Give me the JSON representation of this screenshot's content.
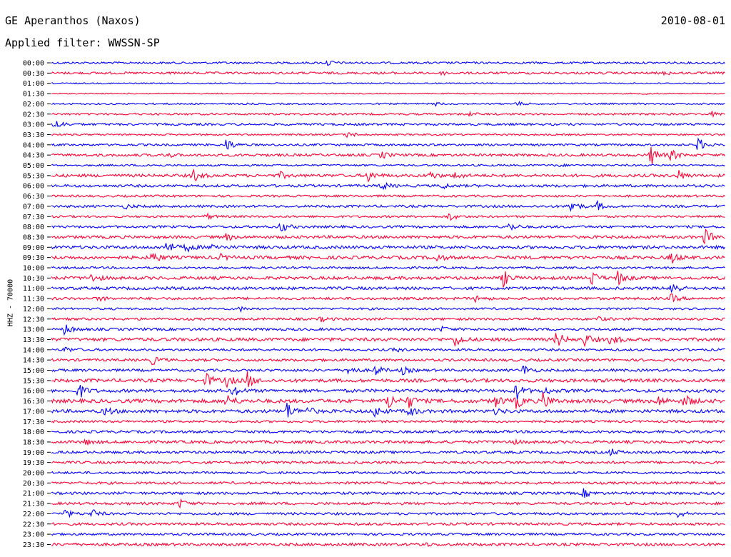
{
  "header": {
    "station": "GE Aperanthos (Naxos)",
    "date": "2010-08-01",
    "filter": "Applied filter: WWSSN-SP"
  },
  "chart_data": {
    "type": "line",
    "description": "24-hour helicorder, one trace per 30-minute row",
    "y_axis_label": "HHZ - 70000",
    "colors": [
      "#0000ff",
      "#ff0033"
    ],
    "rows": [
      {
        "label": "00:00",
        "amp": 1.4,
        "bursts": [
          [
            0.41,
            4
          ]
        ]
      },
      {
        "label": "00:30",
        "amp": 1.6,
        "bursts": [
          [
            0.58,
            2
          ],
          [
            0.91,
            2
          ]
        ]
      },
      {
        "label": "01:00",
        "amp": 0.9,
        "bursts": []
      },
      {
        "label": "01:30",
        "amp": 0.8,
        "bursts": [
          [
            0.88,
            1
          ]
        ]
      },
      {
        "label": "02:00",
        "amp": 1.2,
        "bursts": [
          [
            0.57,
            2
          ],
          [
            0.69,
            3
          ]
        ]
      },
      {
        "label": "02:30",
        "amp": 1.4,
        "bursts": [
          [
            0.62,
            2
          ],
          [
            0.98,
            3
          ]
        ]
      },
      {
        "label": "03:00",
        "amp": 1.6,
        "bursts": [
          [
            0.005,
            8
          ]
        ]
      },
      {
        "label": "03:30",
        "amp": 1.2,
        "bursts": [
          [
            0.44,
            5
          ]
        ]
      },
      {
        "label": "04:00",
        "amp": 1.5,
        "bursts": [
          [
            0.26,
            9
          ],
          [
            0.96,
            10
          ]
        ]
      },
      {
        "label": "04:30",
        "amp": 1.8,
        "bursts": [
          [
            0.17,
            4
          ],
          [
            0.49,
            5
          ],
          [
            0.89,
            14
          ],
          [
            0.92,
            8
          ]
        ]
      },
      {
        "label": "05:00",
        "amp": 1.3,
        "bursts": [
          [
            0.14,
            2
          ],
          [
            0.75,
            2
          ]
        ]
      },
      {
        "label": "05:30",
        "amp": 2.1,
        "bursts": [
          [
            0.21,
            9
          ],
          [
            0.34,
            4
          ],
          [
            0.47,
            8
          ],
          [
            0.56,
            6
          ],
          [
            0.6,
            5
          ],
          [
            0.93,
            7
          ]
        ]
      },
      {
        "label": "06:00",
        "amp": 1.8,
        "bursts": [
          [
            0.49,
            6
          ],
          [
            0.58,
            4
          ]
        ]
      },
      {
        "label": "06:30",
        "amp": 1.5,
        "bursts": []
      },
      {
        "label": "07:00",
        "amp": 1.7,
        "bursts": [
          [
            0.11,
            3
          ],
          [
            0.77,
            12
          ],
          [
            0.81,
            6
          ]
        ]
      },
      {
        "label": "07:30",
        "amp": 1.5,
        "bursts": [
          [
            0.23,
            4
          ],
          [
            0.59,
            6
          ]
        ]
      },
      {
        "label": "08:00",
        "amp": 1.7,
        "bursts": [
          [
            0.34,
            8
          ],
          [
            0.68,
            6
          ]
        ]
      },
      {
        "label": "08:30",
        "amp": 2.0,
        "bursts": [
          [
            0.26,
            5
          ],
          [
            0.97,
            12
          ]
        ]
      },
      {
        "label": "09:00",
        "amp": 2.2,
        "bursts": [
          [
            0.17,
            10
          ],
          [
            0.2,
            6
          ],
          [
            0.24,
            5
          ]
        ]
      },
      {
        "label": "09:30",
        "amp": 2.3,
        "bursts": [
          [
            0.15,
            8
          ],
          [
            0.25,
            4
          ],
          [
            0.57,
            6
          ],
          [
            0.92,
            8
          ]
        ]
      },
      {
        "label": "10:00",
        "amp": 1.5,
        "bursts": []
      },
      {
        "label": "10:30",
        "amp": 2.2,
        "bursts": [
          [
            0.06,
            6
          ],
          [
            0.67,
            12
          ],
          [
            0.8,
            12
          ],
          [
            0.84,
            10
          ]
        ]
      },
      {
        "label": "11:00",
        "amp": 2.0,
        "bursts": [
          [
            0.92,
            12
          ]
        ]
      },
      {
        "label": "11:30",
        "amp": 1.8,
        "bursts": [
          [
            0.07,
            3
          ],
          [
            0.63,
            4
          ],
          [
            0.92,
            6
          ]
        ]
      },
      {
        "label": "12:00",
        "amp": 1.5,
        "bursts": [
          [
            0.28,
            3
          ]
        ]
      },
      {
        "label": "12:30",
        "amp": 1.7,
        "bursts": [
          [
            0.4,
            3
          ],
          [
            0.81,
            3
          ]
        ]
      },
      {
        "label": "13:00",
        "amp": 1.8,
        "bursts": [
          [
            0.02,
            8
          ],
          [
            0.58,
            3
          ]
        ]
      },
      {
        "label": "13:30",
        "amp": 2.3,
        "bursts": [
          [
            0.6,
            10
          ],
          [
            0.75,
            12
          ],
          [
            0.79,
            10
          ],
          [
            0.83,
            8
          ]
        ]
      },
      {
        "label": "14:00",
        "amp": 1.6,
        "bursts": [
          [
            0.02,
            4
          ],
          [
            0.51,
            3
          ]
        ]
      },
      {
        "label": "14:30",
        "amp": 1.8,
        "bursts": [
          [
            0.15,
            6
          ]
        ]
      },
      {
        "label": "15:00",
        "amp": 1.8,
        "bursts": [
          [
            0.44,
            8
          ],
          [
            0.48,
            8
          ],
          [
            0.52,
            6
          ],
          [
            0.7,
            8
          ]
        ]
      },
      {
        "label": "15:30",
        "amp": 2.3,
        "bursts": [
          [
            0.23,
            10
          ],
          [
            0.26,
            8
          ],
          [
            0.29,
            12
          ]
        ]
      },
      {
        "label": "16:00",
        "amp": 2.2,
        "bursts": [
          [
            0.04,
            12
          ],
          [
            0.27,
            8
          ],
          [
            0.69,
            12
          ],
          [
            0.73,
            6
          ]
        ]
      },
      {
        "label": "16:30",
        "amp": 2.6,
        "bursts": [
          [
            0.26,
            10
          ],
          [
            0.5,
            12
          ],
          [
            0.53,
            9
          ],
          [
            0.66,
            8
          ],
          [
            0.69,
            10
          ],
          [
            0.73,
            12
          ],
          [
            0.9,
            7
          ],
          [
            0.94,
            10
          ]
        ]
      },
      {
        "label": "17:00",
        "amp": 2.3,
        "bursts": [
          [
            0.08,
            6
          ],
          [
            0.35,
            12
          ],
          [
            0.38,
            6
          ],
          [
            0.48,
            8
          ],
          [
            0.53,
            8
          ],
          [
            0.66,
            4
          ]
        ]
      },
      {
        "label": "17:30",
        "amp": 1.6,
        "bursts": []
      },
      {
        "label": "18:00",
        "amp": 1.8,
        "bursts": []
      },
      {
        "label": "18:30",
        "amp": 2.0,
        "bursts": [
          [
            0.05,
            4
          ],
          [
            0.68,
            4
          ]
        ]
      },
      {
        "label": "19:00",
        "amp": 1.8,
        "bursts": [
          [
            0.83,
            5
          ]
        ]
      },
      {
        "label": "19:30",
        "amp": 1.8,
        "bursts": []
      },
      {
        "label": "20:00",
        "amp": 1.6,
        "bursts": []
      },
      {
        "label": "20:30",
        "amp": 1.7,
        "bursts": []
      },
      {
        "label": "21:00",
        "amp": 1.8,
        "bursts": [
          [
            0.79,
            6
          ]
        ]
      },
      {
        "label": "21:30",
        "amp": 1.8,
        "bursts": [
          [
            0.19,
            6
          ]
        ]
      },
      {
        "label": "22:00",
        "amp": 1.7,
        "bursts": [
          [
            0.02,
            6
          ],
          [
            0.06,
            6
          ],
          [
            0.93,
            5
          ]
        ]
      },
      {
        "label": "22:30",
        "amp": 1.8,
        "bursts": []
      },
      {
        "label": "23:00",
        "amp": 1.6,
        "bursts": []
      },
      {
        "label": "23:30",
        "amp": 2.0,
        "bursts": [
          [
            0.55,
            3
          ]
        ]
      }
    ]
  }
}
